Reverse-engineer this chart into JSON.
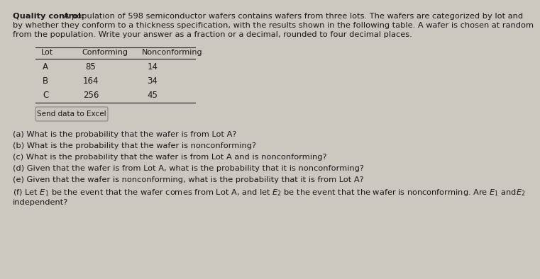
{
  "bg_color": "#ccc8c0",
  "text_color": "#1a1a1a",
  "font_size_body": 8.2,
  "font_size_table": 8.5,
  "font_size_btn": 7.5,
  "title_bold": "Quality control:",
  "intro_line1": " A population of 598 semiconductor wafers contains wafers from three lots. The wafers are categorized by lot and",
  "intro_line2": "by whether they conform to a thickness specification, with the results shown in the following table. A wafer is chosen at random",
  "intro_line3": "from the population. Write your answer as a fraction or a decimal, rounded to four decimal places.",
  "table_headers": [
    "Lot",
    "Conforming",
    "Nonconforming"
  ],
  "table_rows": [
    [
      "A",
      "85",
      "14"
    ],
    [
      "B",
      "164",
      "34"
    ],
    [
      "C",
      "256",
      "45"
    ]
  ],
  "button_text": "Send data to Excel",
  "q_a": "(a) What is the probability that the wafer is from Lot A?",
  "q_b": "(b) What is the probability that the wafer is nonconforming?",
  "q_c": "(c) What is the probability that the wafer is from Lot A and is nonconforming?",
  "q_d": "(d) Given that the wafer is from Lot A, what is the probability that it is nonconforming?",
  "q_e": "(e) Given that the wafer is nonconforming, what is the probability that it is from Lot A?",
  "q_f1": "(f) Let $E_1$ be the event that the wafer comes from Lot A, and let $E_2$ be the event that the wafer is nonconforming. Are $E_1$ and$E_2$",
  "q_f2": "independent?"
}
